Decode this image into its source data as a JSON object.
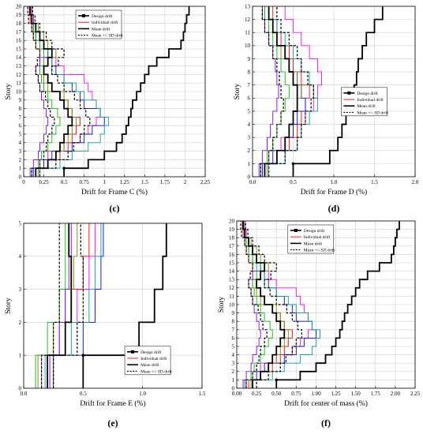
{
  "colors": {
    "design": "#000000",
    "mean": "#000000",
    "individual": [
      "#ff00ff",
      "#ff0000",
      "#0000ff",
      "#00a0a0",
      "#808000",
      "#00c000",
      "#8000ff",
      "#000080",
      "#c06000",
      "#808080"
    ]
  },
  "chart_data": [
    {
      "id": "c",
      "type": "line",
      "panel_label": "(c)",
      "xlabel": "Drift for Frame C (%)",
      "ylabel": "Story",
      "xlim": [
        0,
        2.25
      ],
      "ylim": [
        0,
        20
      ],
      "xticks": [
        0,
        0.25,
        0.5,
        0.75,
        1,
        1.25,
        1.5,
        1.75,
        2,
        2.25
      ],
      "xtick_labels": [
        "0",
        "0.25",
        "0.5",
        "0.75",
        "1",
        "1.25",
        "1.5",
        "1.75",
        "2",
        "2.25"
      ],
      "yticks": [
        0,
        1,
        2,
        3,
        4,
        5,
        6,
        7,
        8,
        9,
        10,
        11,
        12,
        13,
        14,
        15,
        16,
        17,
        18,
        19,
        20
      ],
      "legend_position": "top-right",
      "legend": [
        "Design drift",
        "Individual drift",
        "Mean drift",
        "Mean +/- SD drift"
      ],
      "series": [
        {
          "role": "design",
          "values": [
            0.5,
            0.8,
            1.0,
            1.15,
            1.22,
            1.27,
            1.3,
            1.33,
            1.35,
            1.4,
            1.45,
            1.5,
            1.55,
            1.65,
            1.8,
            1.95,
            1.98,
            2.0,
            2.02,
            2.05
          ]
        },
        {
          "role": "mean",
          "values": [
            0.15,
            0.3,
            0.4,
            0.45,
            0.5,
            0.55,
            0.6,
            0.55,
            0.5,
            0.45,
            0.35,
            0.3,
            0.25,
            0.3,
            0.35,
            0.25,
            0.2,
            0.15,
            0.1,
            0.08
          ]
        },
        {
          "role": "sd",
          "values": [
            0.1,
            0.2,
            0.25,
            0.28,
            0.3,
            0.35,
            0.38,
            0.33,
            0.3,
            0.27,
            0.2,
            0.18,
            0.15,
            0.17,
            0.2,
            0.15,
            0.12,
            0.1,
            0.06,
            0.05
          ]
        },
        {
          "role": "sd",
          "values": [
            0.2,
            0.4,
            0.55,
            0.62,
            0.7,
            0.75,
            0.82,
            0.77,
            0.7,
            0.63,
            0.5,
            0.42,
            0.35,
            0.43,
            0.5,
            0.35,
            0.28,
            0.2,
            0.14,
            0.11
          ]
        },
        {
          "role": "individual",
          "values": [
            0.1,
            0.2,
            0.3,
            0.5,
            0.7,
            0.8,
            0.9,
            0.95,
            0.9,
            0.85,
            0.8,
            0.75,
            0.5,
            0.4,
            0.3,
            0.25,
            0.2,
            0.15,
            0.1,
            0.1
          ]
        },
        {
          "role": "individual",
          "values": [
            0.15,
            0.3,
            0.45,
            0.55,
            0.6,
            0.65,
            0.7,
            0.6,
            0.55,
            0.45,
            0.35,
            0.3,
            0.25,
            0.2,
            0.2,
            0.15,
            0.12,
            0.1,
            0.08,
            0.07
          ]
        },
        {
          "role": "individual",
          "values": [
            0.12,
            0.25,
            0.35,
            0.6,
            0.75,
            0.85,
            1.0,
            0.95,
            0.75,
            0.7,
            0.6,
            0.5,
            0.4,
            0.35,
            0.3,
            0.2,
            0.15,
            0.12,
            0.1,
            0.08
          ]
        },
        {
          "role": "individual",
          "values": [
            0.2,
            0.45,
            0.6,
            0.8,
            0.95,
            1.0,
            1.05,
            0.95,
            0.9,
            0.75,
            0.65,
            0.5,
            0.35,
            0.35,
            0.25,
            0.2,
            0.15,
            0.12,
            0.1,
            0.08
          ]
        },
        {
          "role": "individual",
          "values": [
            0.18,
            0.3,
            0.4,
            0.5,
            0.55,
            0.6,
            0.65,
            0.6,
            0.55,
            0.5,
            0.3,
            0.25,
            0.2,
            0.3,
            0.4,
            0.3,
            0.25,
            0.18,
            0.12,
            0.1
          ]
        },
        {
          "role": "individual",
          "values": [
            0.1,
            0.18,
            0.22,
            0.3,
            0.35,
            0.4,
            0.45,
            0.42,
            0.35,
            0.3,
            0.25,
            0.22,
            0.2,
            0.25,
            0.3,
            0.2,
            0.15,
            0.12,
            0.1,
            0.08
          ]
        },
        {
          "role": "individual",
          "values": [
            0.08,
            0.12,
            0.18,
            0.2,
            0.25,
            0.28,
            0.3,
            0.28,
            0.25,
            0.22,
            0.2,
            0.18,
            0.15,
            0.2,
            0.35,
            0.25,
            0.2,
            0.15,
            0.12,
            0.1
          ]
        }
      ]
    },
    {
      "id": "d",
      "type": "line",
      "panel_label": "(d)",
      "xlabel": "Drift for Frame D (%)",
      "ylabel": "Story",
      "xlim": [
        0,
        2
      ],
      "ylim": [
        0,
        13
      ],
      "xticks": [
        0,
        0.5,
        1,
        1.5,
        2
      ],
      "xtick_labels": [
        "0.0",
        "0.5",
        "1.0",
        "1.5",
        "2.0"
      ],
      "yticks": [
        0,
        1,
        2,
        3,
        4,
        5,
        6,
        7,
        8,
        9,
        10,
        11,
        12,
        13
      ],
      "legend_position": "right",
      "legend": [
        "Design drift",
        "Individual drift",
        "Mean drift",
        "Mean +/- SD drift"
      ],
      "series": [
        {
          "role": "design",
          "values": [
            0.5,
            0.95,
            1.05,
            1.1,
            1.15,
            1.2,
            1.25,
            1.28,
            1.3,
            1.35,
            1.4,
            1.5,
            1.6
          ]
        },
        {
          "role": "mean",
          "values": [
            0.15,
            0.3,
            0.4,
            0.45,
            0.5,
            0.55,
            0.55,
            0.5,
            0.45,
            0.4,
            0.3,
            0.25,
            0.2
          ]
        },
        {
          "role": "sd",
          "values": [
            0.1,
            0.2,
            0.25,
            0.3,
            0.35,
            0.38,
            0.35,
            0.33,
            0.3,
            0.25,
            0.2,
            0.15,
            0.12
          ]
        },
        {
          "role": "sd",
          "values": [
            0.2,
            0.4,
            0.55,
            0.6,
            0.65,
            0.72,
            0.75,
            0.68,
            0.6,
            0.55,
            0.45,
            0.35,
            0.3
          ]
        },
        {
          "role": "individual",
          "values": [
            0.1,
            0.2,
            0.35,
            0.5,
            0.65,
            0.75,
            0.8,
            0.85,
            0.8,
            0.7,
            0.6,
            0.5,
            0.4
          ]
        },
        {
          "role": "individual",
          "values": [
            0.15,
            0.3,
            0.45,
            0.55,
            0.6,
            0.65,
            0.7,
            0.6,
            0.5,
            0.45,
            0.35,
            0.3,
            0.25
          ]
        },
        {
          "role": "individual",
          "values": [
            0.12,
            0.25,
            0.4,
            0.5,
            0.55,
            0.65,
            0.6,
            0.55,
            0.45,
            0.4,
            0.3,
            0.25,
            0.2
          ]
        },
        {
          "role": "individual",
          "values": [
            0.2,
            0.4,
            0.55,
            0.6,
            0.7,
            0.8,
            0.75,
            0.7,
            0.6,
            0.5,
            0.4,
            0.3,
            0.2
          ]
        },
        {
          "role": "individual",
          "values": [
            0.18,
            0.3,
            0.4,
            0.45,
            0.5,
            0.55,
            0.6,
            0.55,
            0.45,
            0.35,
            0.3,
            0.25,
            0.15
          ]
        },
        {
          "role": "individual",
          "values": [
            0.1,
            0.18,
            0.25,
            0.3,
            0.35,
            0.4,
            0.45,
            0.4,
            0.35,
            0.3,
            0.25,
            0.2,
            0.15
          ]
        },
        {
          "role": "individual",
          "values": [
            0.08,
            0.12,
            0.18,
            0.22,
            0.25,
            0.3,
            0.32,
            0.3,
            0.28,
            0.25,
            0.2,
            0.15,
            0.12
          ]
        }
      ]
    },
    {
      "id": "e",
      "type": "line",
      "panel_label": "(e)",
      "xlabel": "Drift for Frame E (%)",
      "ylabel": "Story",
      "xlim": [
        0,
        1.5
      ],
      "ylim": [
        0,
        5
      ],
      "xticks": [
        0,
        0.5,
        1,
        1.5
      ],
      "xtick_labels": [
        "0.0",
        "0.5",
        "1.0",
        "1.5"
      ],
      "yticks": [
        0,
        1,
        2,
        3,
        4,
        5
      ],
      "legend_position": "bottom-right",
      "legend": [
        "Design drift",
        "Individual drift",
        "Mean drift",
        "Mean +/- SD drift"
      ],
      "series": [
        {
          "role": "design",
          "values": [
            0.5,
            0.97,
            1.1,
            1.17,
            1.2
          ]
        },
        {
          "role": "mean",
          "values": [
            0.2,
            0.35,
            0.4,
            0.4,
            0.38
          ]
        },
        {
          "role": "sd",
          "values": [
            0.15,
            0.25,
            0.3,
            0.3,
            0.3
          ]
        },
        {
          "role": "sd",
          "values": [
            0.25,
            0.45,
            0.5,
            0.5,
            0.48
          ]
        },
        {
          "role": "individual",
          "values": [
            0.15,
            0.3,
            0.45,
            0.55,
            0.6
          ]
        },
        {
          "role": "individual",
          "values": [
            0.2,
            0.35,
            0.4,
            0.5,
            0.55
          ]
        },
        {
          "role": "individual",
          "values": [
            0.25,
            0.5,
            0.6,
            0.65,
            0.67
          ]
        },
        {
          "role": "individual",
          "values": [
            0.18,
            0.4,
            0.55,
            0.6,
            0.65
          ]
        },
        {
          "role": "individual",
          "values": [
            0.12,
            0.25,
            0.35,
            0.42,
            0.45
          ]
        },
        {
          "role": "individual",
          "values": [
            0.1,
            0.2,
            0.3,
            0.35,
            0.35
          ]
        },
        {
          "role": "individual",
          "values": [
            0.22,
            0.3,
            0.35,
            0.38,
            0.4
          ]
        }
      ]
    },
    {
      "id": "f",
      "type": "line",
      "panel_label": "(f)",
      "xlabel": "Drift for center of mass (%)",
      "ylabel": "Story",
      "xlim": [
        0,
        2.25
      ],
      "ylim": [
        0,
        20
      ],
      "xticks": [
        0,
        0.25,
        0.5,
        0.75,
        1,
        1.25,
        1.5,
        1.75,
        2,
        2.25
      ],
      "xtick_labels": [
        "0.00",
        "0.25",
        "0.50",
        "0.75",
        "1.00",
        "1.25",
        "1.50",
        "1.75",
        "2.00",
        "2.25"
      ],
      "yticks": [
        0,
        1,
        2,
        3,
        4,
        5,
        6,
        7,
        8,
        9,
        10,
        11,
        12,
        13,
        14,
        15,
        16,
        17,
        18,
        19,
        20
      ],
      "legend_position": "top-right",
      "legend": [
        "Design drift",
        "Individual drift",
        "Mean drift",
        "Mean +/- SD drift"
      ],
      "series": [
        {
          "role": "design",
          "values": [
            0.5,
            0.8,
            1.0,
            1.12,
            1.2,
            1.25,
            1.3,
            1.33,
            1.36,
            1.4,
            1.45,
            1.5,
            1.55,
            1.65,
            1.8,
            1.95,
            1.98,
            2.0,
            2.02,
            2.05
          ]
        },
        {
          "role": "mean",
          "values": [
            0.2,
            0.3,
            0.4,
            0.45,
            0.5,
            0.55,
            0.6,
            0.55,
            0.5,
            0.45,
            0.35,
            0.3,
            0.25,
            0.3,
            0.35,
            0.25,
            0.2,
            0.15,
            0.1,
            0.08
          ]
        },
        {
          "role": "sd",
          "values": [
            0.12,
            0.2,
            0.25,
            0.28,
            0.3,
            0.35,
            0.38,
            0.33,
            0.3,
            0.27,
            0.2,
            0.18,
            0.15,
            0.17,
            0.2,
            0.15,
            0.12,
            0.1,
            0.06,
            0.05
          ]
        },
        {
          "role": "sd",
          "values": [
            0.25,
            0.4,
            0.55,
            0.62,
            0.7,
            0.75,
            0.82,
            0.77,
            0.7,
            0.63,
            0.5,
            0.42,
            0.35,
            0.43,
            0.5,
            0.35,
            0.28,
            0.2,
            0.14,
            0.11
          ]
        },
        {
          "role": "individual",
          "values": [
            0.1,
            0.2,
            0.3,
            0.5,
            0.7,
            0.8,
            0.9,
            0.95,
            0.9,
            0.85,
            0.8,
            0.75,
            0.5,
            0.4,
            0.3,
            0.25,
            0.2,
            0.15,
            0.1,
            0.1
          ]
        },
        {
          "role": "individual",
          "values": [
            0.15,
            0.3,
            0.45,
            0.55,
            0.6,
            0.65,
            0.7,
            0.6,
            0.55,
            0.45,
            0.35,
            0.3,
            0.25,
            0.2,
            0.2,
            0.15,
            0.12,
            0.1,
            0.08,
            0.07
          ]
        },
        {
          "role": "individual",
          "values": [
            0.12,
            0.25,
            0.35,
            0.6,
            0.75,
            0.85,
            1.0,
            0.95,
            0.75,
            0.7,
            0.6,
            0.5,
            0.4,
            0.35,
            0.3,
            0.2,
            0.15,
            0.12,
            0.1,
            0.08
          ]
        },
        {
          "role": "individual",
          "values": [
            0.2,
            0.45,
            0.6,
            0.8,
            0.95,
            1.0,
            1.05,
            0.95,
            0.9,
            0.75,
            0.65,
            0.5,
            0.35,
            0.35,
            0.25,
            0.2,
            0.15,
            0.12,
            0.1,
            0.08
          ]
        },
        {
          "role": "individual",
          "values": [
            0.18,
            0.3,
            0.4,
            0.5,
            0.55,
            0.6,
            0.65,
            0.6,
            0.55,
            0.5,
            0.3,
            0.25,
            0.2,
            0.3,
            0.4,
            0.3,
            0.25,
            0.18,
            0.12,
            0.1
          ]
        },
        {
          "role": "individual",
          "values": [
            0.1,
            0.18,
            0.22,
            0.3,
            0.35,
            0.4,
            0.45,
            0.42,
            0.35,
            0.3,
            0.25,
            0.22,
            0.2,
            0.25,
            0.3,
            0.2,
            0.15,
            0.12,
            0.1,
            0.08
          ]
        },
        {
          "role": "individual",
          "values": [
            0.08,
            0.12,
            0.18,
            0.2,
            0.25,
            0.28,
            0.3,
            0.28,
            0.25,
            0.22,
            0.2,
            0.18,
            0.15,
            0.2,
            0.35,
            0.25,
            0.2,
            0.15,
            0.12,
            0.1
          ]
        }
      ]
    }
  ]
}
